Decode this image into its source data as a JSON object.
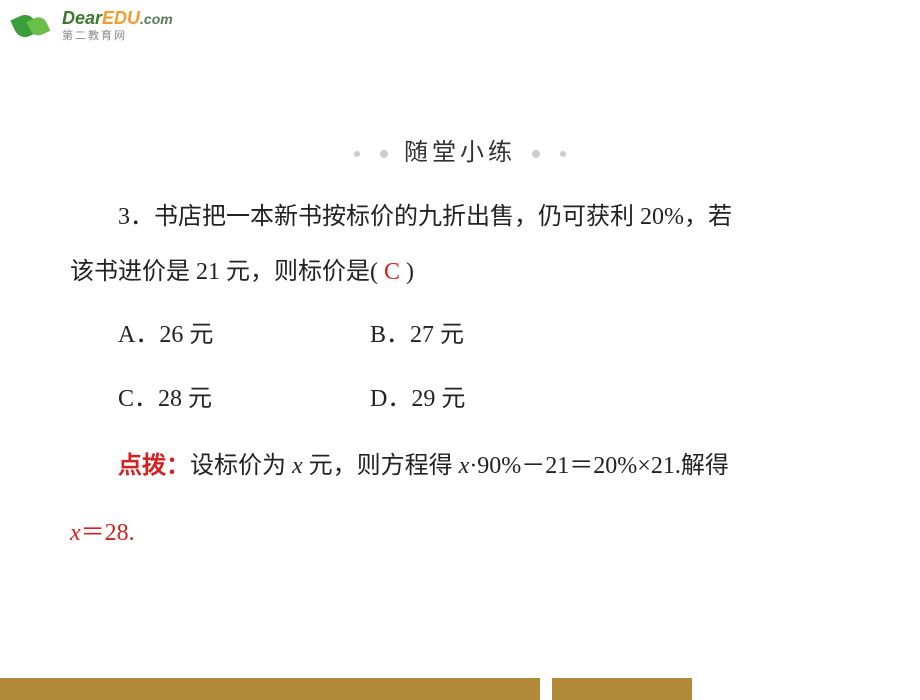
{
  "logo": {
    "brand_part1": "Dear",
    "brand_part2": "EDU",
    "brand_part3": ".com",
    "subtitle": "第二教育网"
  },
  "section_title": "随堂小练",
  "question": {
    "number": "3．",
    "text_line1": "书店把一本新书按标价的九折出售，仍可获利 20%，若",
    "text_line2": "该书进价是 21 元，则标价是(",
    "text_line2_end": ")",
    "answer": "C"
  },
  "options": {
    "a": "A．26 元",
    "b": "B．27 元",
    "c": "C．28 元",
    "d": "D．29 元"
  },
  "hint": {
    "label": "点拨：",
    "text1": "设标价为 ",
    "var1": "x",
    "text2": " 元，则方程得 ",
    "var2": "x",
    "text3": "·90%－21＝20%×21.解得",
    "line2_var": "x",
    "line2_text": "＝28."
  },
  "colors": {
    "background": "#ffffff",
    "text_primary": "#222222",
    "text_red": "#d42020",
    "logo_green": "#3a7a2e",
    "logo_orange": "#f39c2e",
    "logo_gray": "#888888",
    "dot_gray": "#cccccc",
    "bar_gold": "#b38a3a"
  }
}
